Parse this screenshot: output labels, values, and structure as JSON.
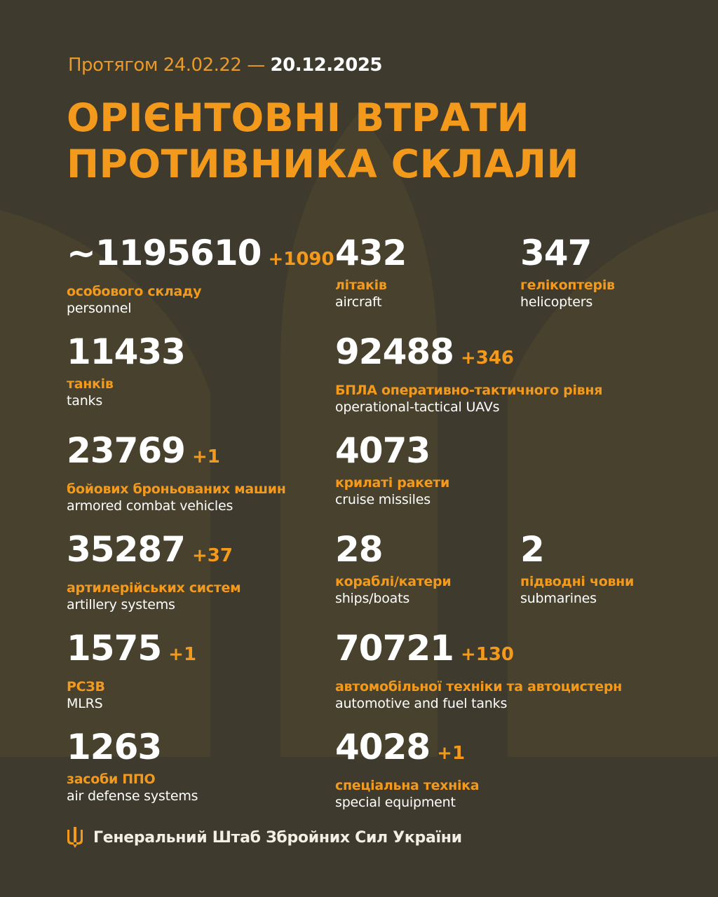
{
  "header": {
    "period_prefix": "Протягом 24.02.22 —",
    "period_end": "20.12.2025",
    "title_line1": "ОРІЄНТОВНІ ВТРАТИ",
    "title_line2": "ПРОТИВНИКА СКЛАЛИ"
  },
  "colors": {
    "background": "#3e3a2d",
    "accent": "#f39a1c",
    "text": "#ffffff"
  },
  "items": [
    {
      "value": "~1195610",
      "delta": "+1090",
      "ua": "особового складу",
      "en": "personnel",
      "col": 0,
      "row": 0
    },
    {
      "value": "432",
      "delta": "",
      "ua": "літаків",
      "en": "aircraft",
      "col": 1,
      "row": 0
    },
    {
      "value": "347",
      "delta": "",
      "ua": "гелікоптерів",
      "en": "helicopters",
      "col": 2,
      "row": 0
    },
    {
      "value": "11433",
      "delta": "",
      "ua": "танків",
      "en": "tanks",
      "col": 0,
      "row": 1
    },
    {
      "value": "92488",
      "delta": "+346",
      "ua": "БПЛА оперативно-тактичного рівня",
      "en": "operational-tactical UAVs",
      "col": 1,
      "row": 1
    },
    {
      "value": "23769",
      "delta": "+1",
      "ua": "бойових броньованих машин",
      "en": "armored combat vehicles",
      "col": 0,
      "row": 2
    },
    {
      "value": "4073",
      "delta": "",
      "ua": "крилаті ракети",
      "en": "cruise missiles",
      "col": 1,
      "row": 2
    },
    {
      "value": "35287",
      "delta": "+37",
      "ua": "артилерійських систем",
      "en": "artillery systems",
      "col": 0,
      "row": 3
    },
    {
      "value": "28",
      "delta": "",
      "ua": "кораблі/катери",
      "en": "ships/boats",
      "col": 1,
      "row": 3
    },
    {
      "value": "2",
      "delta": "",
      "ua": "підводні човни",
      "en": "submarines",
      "col": 2,
      "row": 3
    },
    {
      "value": "1575",
      "delta": "+1",
      "ua": "РСЗВ",
      "en": "MLRS",
      "col": 0,
      "row": 4
    },
    {
      "value": "70721",
      "delta": "+130",
      "ua": "автомобільної техніки та автоцистерн",
      "en": "automotive and fuel tanks",
      "col": 1,
      "row": 4
    },
    {
      "value": "1263",
      "delta": "",
      "ua": "засоби ППО",
      "en": "air defense systems",
      "col": 0,
      "row": 5
    },
    {
      "value": "4028",
      "delta": "+1",
      "ua": "спеціальна техніка",
      "en": "special equipment",
      "col": 1,
      "row": 5
    }
  ],
  "footer": {
    "icon": "trident-icon",
    "text": "Генеральний Штаб Збройних Сил України"
  }
}
